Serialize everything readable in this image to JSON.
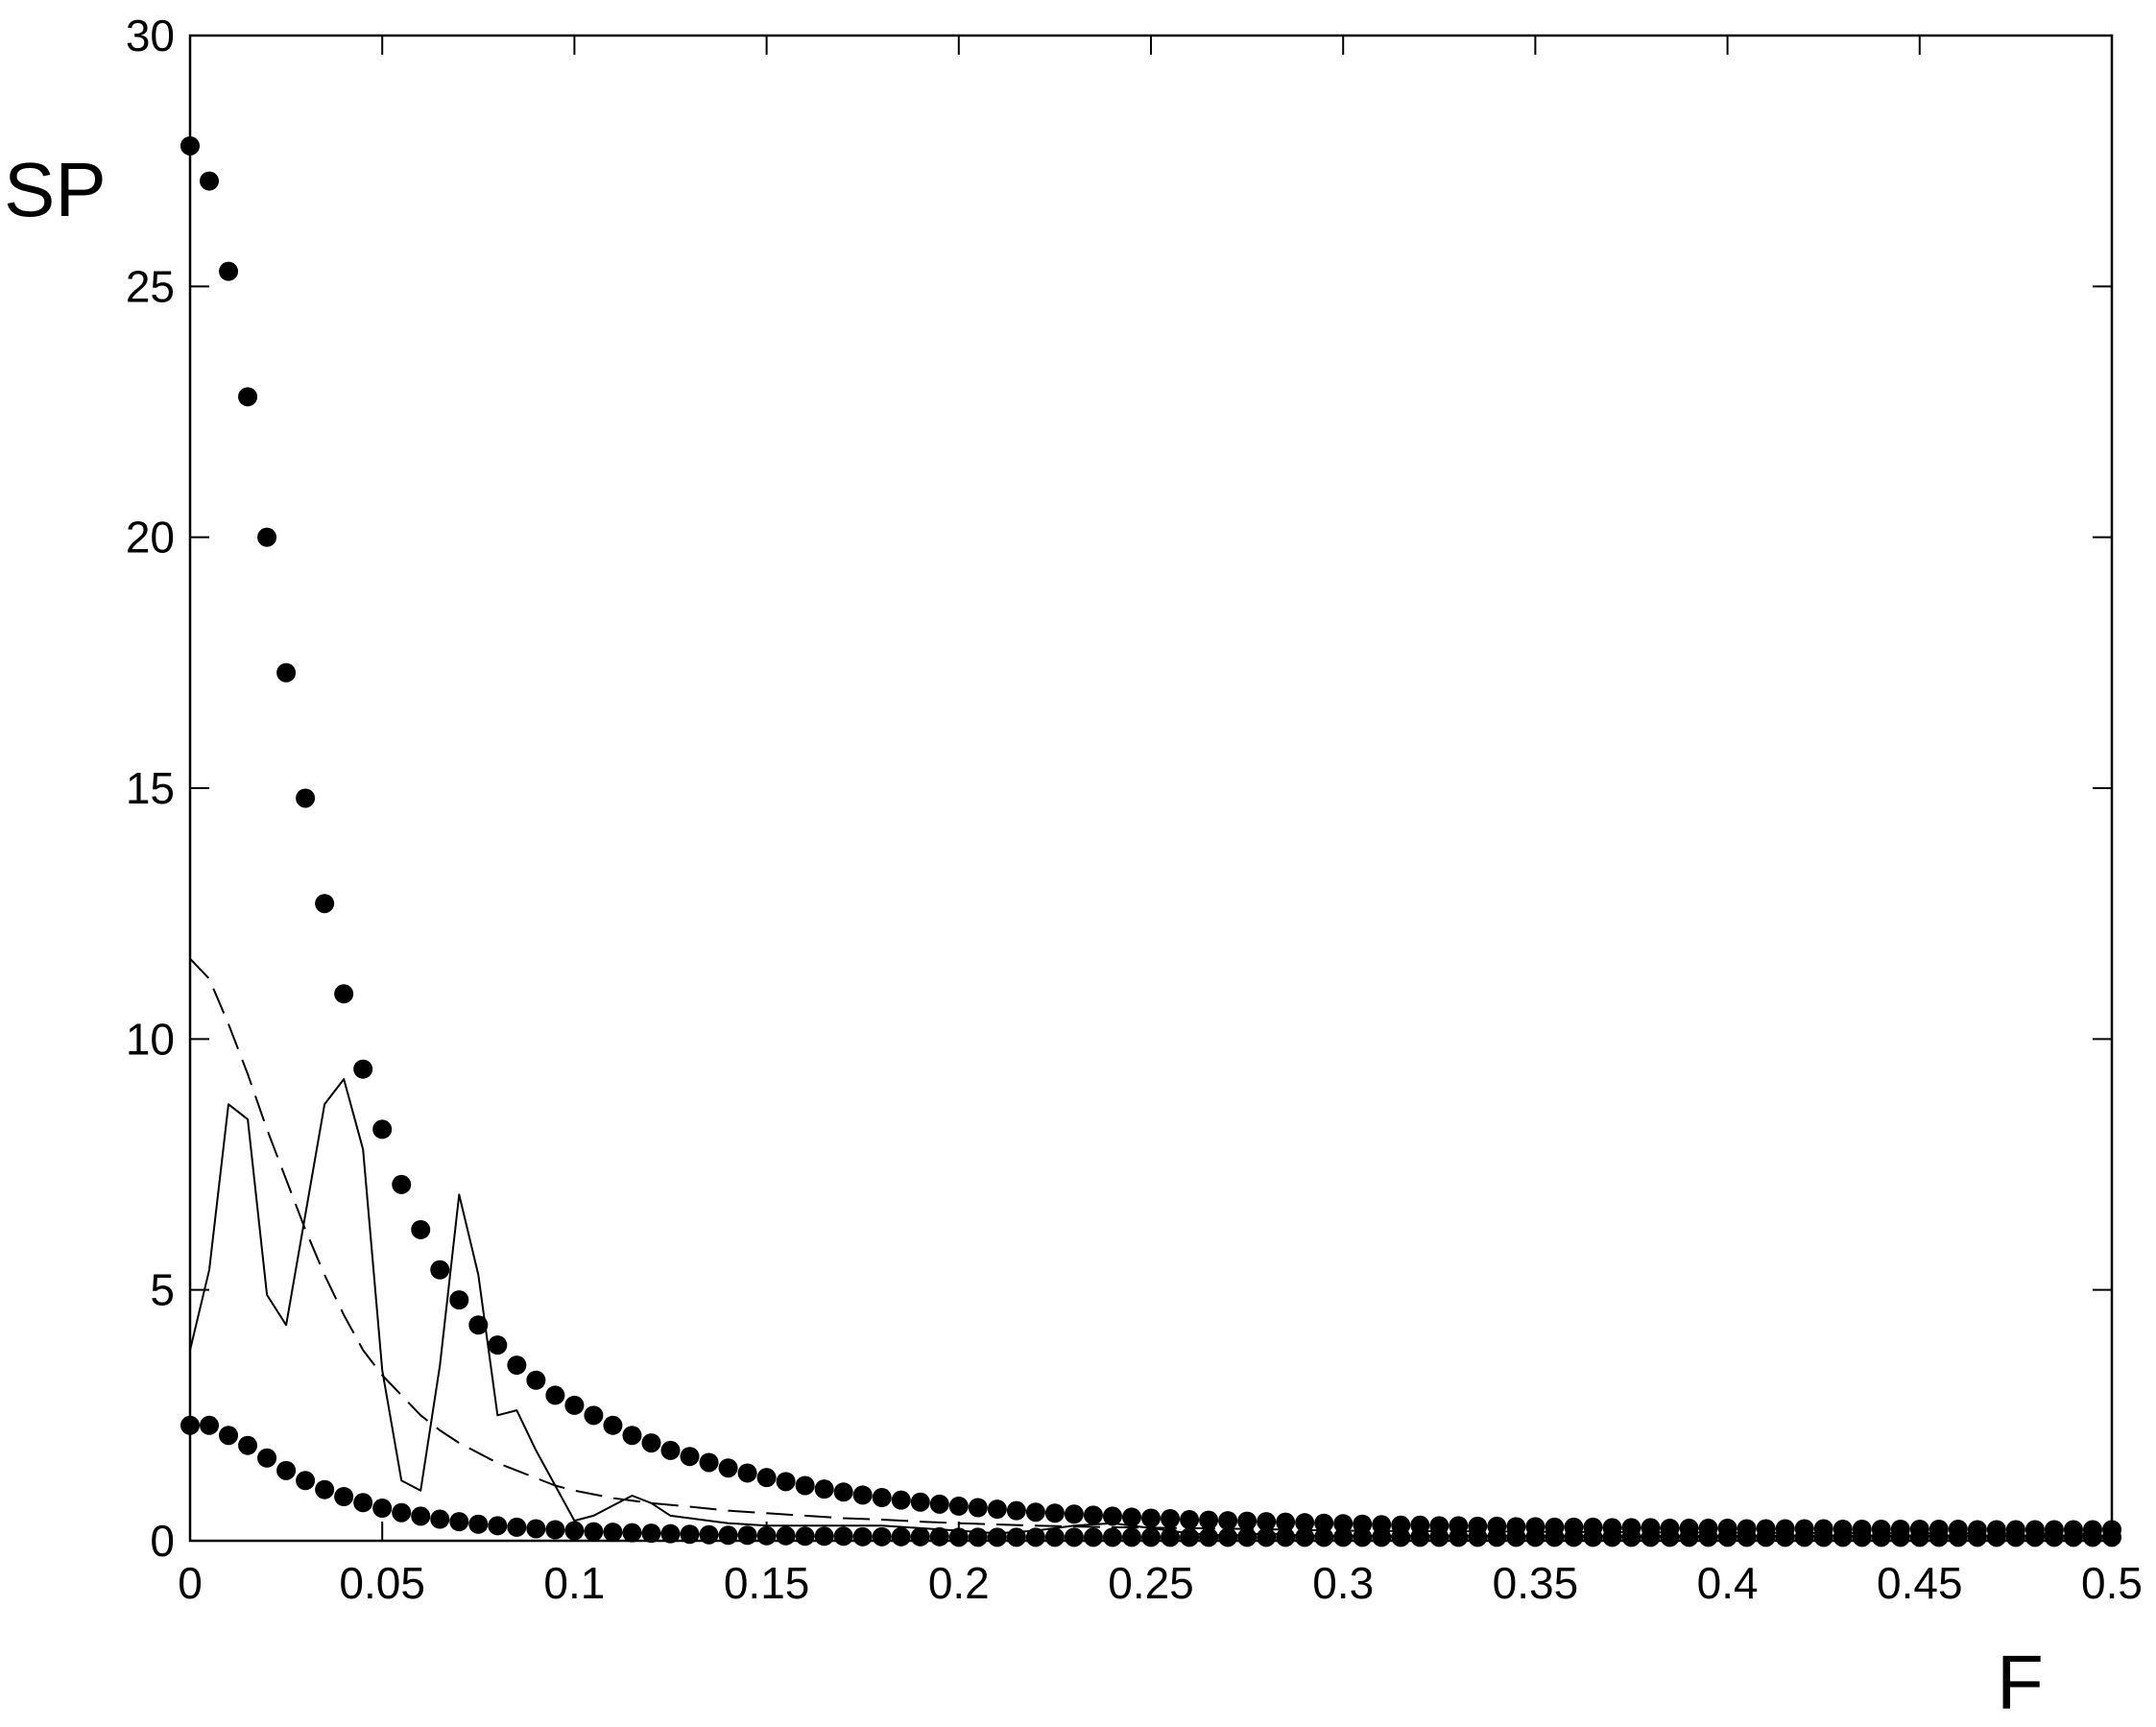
{
  "chart_data": {
    "type": "line",
    "title": "",
    "xlabel": "F",
    "ylabel": "SP",
    "xlim": [
      0,
      0.5
    ],
    "ylim": [
      0,
      30
    ],
    "grid": false,
    "legend": "none",
    "x_ticks": [
      {
        "value": 0,
        "label": "0"
      },
      {
        "value": 0.05,
        "label": "0.05"
      },
      {
        "value": 0.1,
        "label": "0.1"
      },
      {
        "value": 0.15,
        "label": "0.15"
      },
      {
        "value": 0.2,
        "label": "0.2"
      },
      {
        "value": 0.25,
        "label": "0.25"
      },
      {
        "value": 0.3,
        "label": "0.3"
      },
      {
        "value": 0.35,
        "label": "0.35"
      },
      {
        "value": 0.4,
        "label": "0.4"
      },
      {
        "value": 0.45,
        "label": "0.45"
      },
      {
        "value": 0.5,
        "label": "0.5"
      }
    ],
    "y_ticks": [
      {
        "value": 0,
        "label": "0"
      },
      {
        "value": 5,
        "label": "5"
      },
      {
        "value": 10,
        "label": "10"
      },
      {
        "value": 15,
        "label": "15"
      },
      {
        "value": 20,
        "label": "20"
      },
      {
        "value": 25,
        "label": "25"
      },
      {
        "value": 30,
        "label": "30"
      }
    ],
    "series": [
      {
        "style": "dots",
        "color": "#000000",
        "x": [
          0,
          0.005,
          0.01,
          0.015,
          0.02,
          0.025,
          0.03,
          0.035,
          0.04,
          0.045,
          0.05,
          0.055,
          0.06,
          0.065,
          0.07,
          0.075,
          0.08,
          0.085,
          0.09,
          0.095,
          0.1,
          0.105,
          0.11,
          0.115,
          0.12,
          0.125,
          0.13,
          0.135,
          0.14,
          0.145,
          0.15,
          0.155,
          0.16,
          0.165,
          0.17,
          0.175,
          0.18,
          0.185,
          0.19,
          0.195,
          0.2,
          0.205,
          0.21,
          0.215,
          0.22,
          0.225,
          0.23,
          0.235,
          0.24,
          0.245,
          0.25,
          0.255,
          0.26,
          0.265,
          0.27,
          0.275,
          0.28,
          0.285,
          0.29,
          0.295,
          0.3,
          0.305,
          0.31,
          0.315,
          0.32,
          0.325,
          0.33,
          0.335,
          0.34,
          0.345,
          0.35,
          0.355,
          0.36,
          0.365,
          0.37,
          0.375,
          0.38,
          0.385,
          0.39,
          0.395,
          0.4,
          0.405,
          0.41,
          0.415,
          0.42,
          0.425,
          0.43,
          0.435,
          0.44,
          0.445,
          0.45,
          0.455,
          0.46,
          0.465,
          0.47,
          0.475,
          0.48,
          0.485,
          0.49,
          0.495,
          0.5
        ],
        "values": [
          27.8,
          27.1,
          25.3,
          22.8,
          20.0,
          17.3,
          14.8,
          12.7,
          10.9,
          9.4,
          8.2,
          7.1,
          6.2,
          5.4,
          4.8,
          4.3,
          3.9,
          3.5,
          3.2,
          2.9,
          2.7,
          2.5,
          2.3,
          2.1,
          1.95,
          1.8,
          1.68,
          1.56,
          1.45,
          1.35,
          1.26,
          1.18,
          1.1,
          1.03,
          0.97,
          0.91,
          0.86,
          0.81,
          0.77,
          0.73,
          0.69,
          0.66,
          0.63,
          0.6,
          0.57,
          0.55,
          0.53,
          0.51,
          0.49,
          0.47,
          0.45,
          0.44,
          0.42,
          0.41,
          0.4,
          0.39,
          0.38,
          0.37,
          0.36,
          0.35,
          0.34,
          0.33,
          0.32,
          0.31,
          0.31,
          0.3,
          0.3,
          0.29,
          0.29,
          0.28,
          0.28,
          0.27,
          0.27,
          0.27,
          0.26,
          0.26,
          0.26,
          0.25,
          0.25,
          0.25,
          0.25,
          0.24,
          0.24,
          0.24,
          0.24,
          0.24,
          0.23,
          0.23,
          0.23,
          0.23,
          0.23,
          0.23,
          0.23,
          0.22,
          0.22,
          0.22,
          0.22,
          0.22,
          0.22,
          0.22,
          0.22
        ]
      },
      {
        "style": "dots",
        "color": "#000000",
        "x": [
          0,
          0.005,
          0.01,
          0.015,
          0.02,
          0.025,
          0.03,
          0.035,
          0.04,
          0.045,
          0.05,
          0.055,
          0.06,
          0.065,
          0.07,
          0.075,
          0.08,
          0.085,
          0.09,
          0.095,
          0.1,
          0.105,
          0.11,
          0.115,
          0.12,
          0.125,
          0.13,
          0.135,
          0.14,
          0.145,
          0.15,
          0.155,
          0.16,
          0.165,
          0.17,
          0.175,
          0.18,
          0.185,
          0.19,
          0.195,
          0.2,
          0.205,
          0.21,
          0.215,
          0.22,
          0.225,
          0.23,
          0.235,
          0.24,
          0.245,
          0.25,
          0.255,
          0.26,
          0.265,
          0.27,
          0.275,
          0.28,
          0.285,
          0.29,
          0.295,
          0.3,
          0.305,
          0.31,
          0.315,
          0.32,
          0.325,
          0.33,
          0.335,
          0.34,
          0.345,
          0.35,
          0.355,
          0.36,
          0.365,
          0.37,
          0.375,
          0.38,
          0.385,
          0.39,
          0.395,
          0.4,
          0.405,
          0.41,
          0.415,
          0.42,
          0.425,
          0.43,
          0.435,
          0.44,
          0.445,
          0.45,
          0.455,
          0.46,
          0.465,
          0.47,
          0.475,
          0.48,
          0.485,
          0.49,
          0.495,
          0.5
        ],
        "values": [
          2.3,
          2.3,
          2.1,
          1.9,
          1.65,
          1.4,
          1.2,
          1.02,
          0.88,
          0.76,
          0.65,
          0.56,
          0.49,
          0.43,
          0.38,
          0.33,
          0.3,
          0.27,
          0.24,
          0.22,
          0.2,
          0.18,
          0.17,
          0.16,
          0.15,
          0.14,
          0.13,
          0.12,
          0.11,
          0.11,
          0.1,
          0.1,
          0.09,
          0.09,
          0.09,
          0.08,
          0.08,
          0.08,
          0.08,
          0.08,
          0.07,
          0.07,
          0.07,
          0.07,
          0.07,
          0.07,
          0.07,
          0.07,
          0.07,
          0.07,
          0.07,
          0.07,
          0.07,
          0.07,
          0.07,
          0.07,
          0.07,
          0.07,
          0.07,
          0.07,
          0.07,
          0.07,
          0.07,
          0.07,
          0.07,
          0.07,
          0.07,
          0.07,
          0.07,
          0.07,
          0.07,
          0.07,
          0.07,
          0.07,
          0.07,
          0.07,
          0.07,
          0.07,
          0.07,
          0.07,
          0.07,
          0.07,
          0.07,
          0.07,
          0.07,
          0.07,
          0.07,
          0.07,
          0.07,
          0.07,
          0.07,
          0.07,
          0.07,
          0.07,
          0.07,
          0.07,
          0.07,
          0.07,
          0.07,
          0.07,
          0.07
        ]
      },
      {
        "style": "solid",
        "color": "#000000",
        "x": [
          0,
          0.005,
          0.01,
          0.015,
          0.02,
          0.025,
          0.03,
          0.035,
          0.04,
          0.045,
          0.05,
          0.055,
          0.06,
          0.065,
          0.07,
          0.075,
          0.08,
          0.085,
          0.09,
          0.095,
          0.1,
          0.105,
          0.11,
          0.115,
          0.12,
          0.125,
          0.13,
          0.135,
          0.14,
          0.15,
          0.16,
          0.17,
          0.18,
          0.19,
          0.2,
          0.21,
          0.22,
          0.23,
          0.24,
          0.25,
          0.26,
          0.27,
          0.28,
          0.29,
          0.3,
          0.32,
          0.34,
          0.36,
          0.38,
          0.4,
          0.42,
          0.44,
          0.46,
          0.48,
          0.5
        ],
        "values": [
          3.8,
          5.4,
          8.7,
          8.4,
          4.9,
          4.3,
          6.5,
          8.7,
          9.2,
          7.8,
          3.4,
          1.2,
          1.0,
          3.5,
          6.9,
          5.3,
          2.5,
          2.6,
          1.8,
          1.1,
          0.4,
          0.5,
          0.7,
          0.9,
          0.75,
          0.5,
          0.45,
          0.4,
          0.35,
          0.3,
          0.3,
          0.3,
          0.3,
          0.25,
          0.2,
          0.15,
          0.2,
          0.3,
          0.35,
          0.25,
          0.15,
          0.1,
          0.15,
          0.1,
          0.1,
          0.1,
          0.1,
          0.1,
          0.1,
          0.1,
          0.1,
          0.1,
          0.1,
          0.1,
          0.1
        ]
      },
      {
        "style": "dashed",
        "color": "#000000",
        "x": [
          0,
          0.005,
          0.01,
          0.015,
          0.02,
          0.025,
          0.03,
          0.035,
          0.04,
          0.045,
          0.05,
          0.055,
          0.06,
          0.065,
          0.07,
          0.075,
          0.08,
          0.085,
          0.09,
          0.095,
          0.1,
          0.11,
          0.12,
          0.13,
          0.14,
          0.15,
          0.16,
          0.17,
          0.18,
          0.19,
          0.2,
          0.22,
          0.24,
          0.26,
          0.28,
          0.3,
          0.35,
          0.4,
          0.45,
          0.5
        ],
        "values": [
          11.6,
          11.2,
          10.3,
          9.3,
          8.2,
          7.2,
          6.2,
          5.3,
          4.5,
          3.8,
          3.3,
          2.9,
          2.5,
          2.2,
          1.95,
          1.75,
          1.55,
          1.4,
          1.25,
          1.1,
          1.0,
          0.85,
          0.75,
          0.68,
          0.6,
          0.55,
          0.5,
          0.45,
          0.42,
          0.38,
          0.35,
          0.3,
          0.27,
          0.25,
          0.23,
          0.2,
          0.18,
          0.16,
          0.15,
          0.14
        ]
      }
    ]
  }
}
